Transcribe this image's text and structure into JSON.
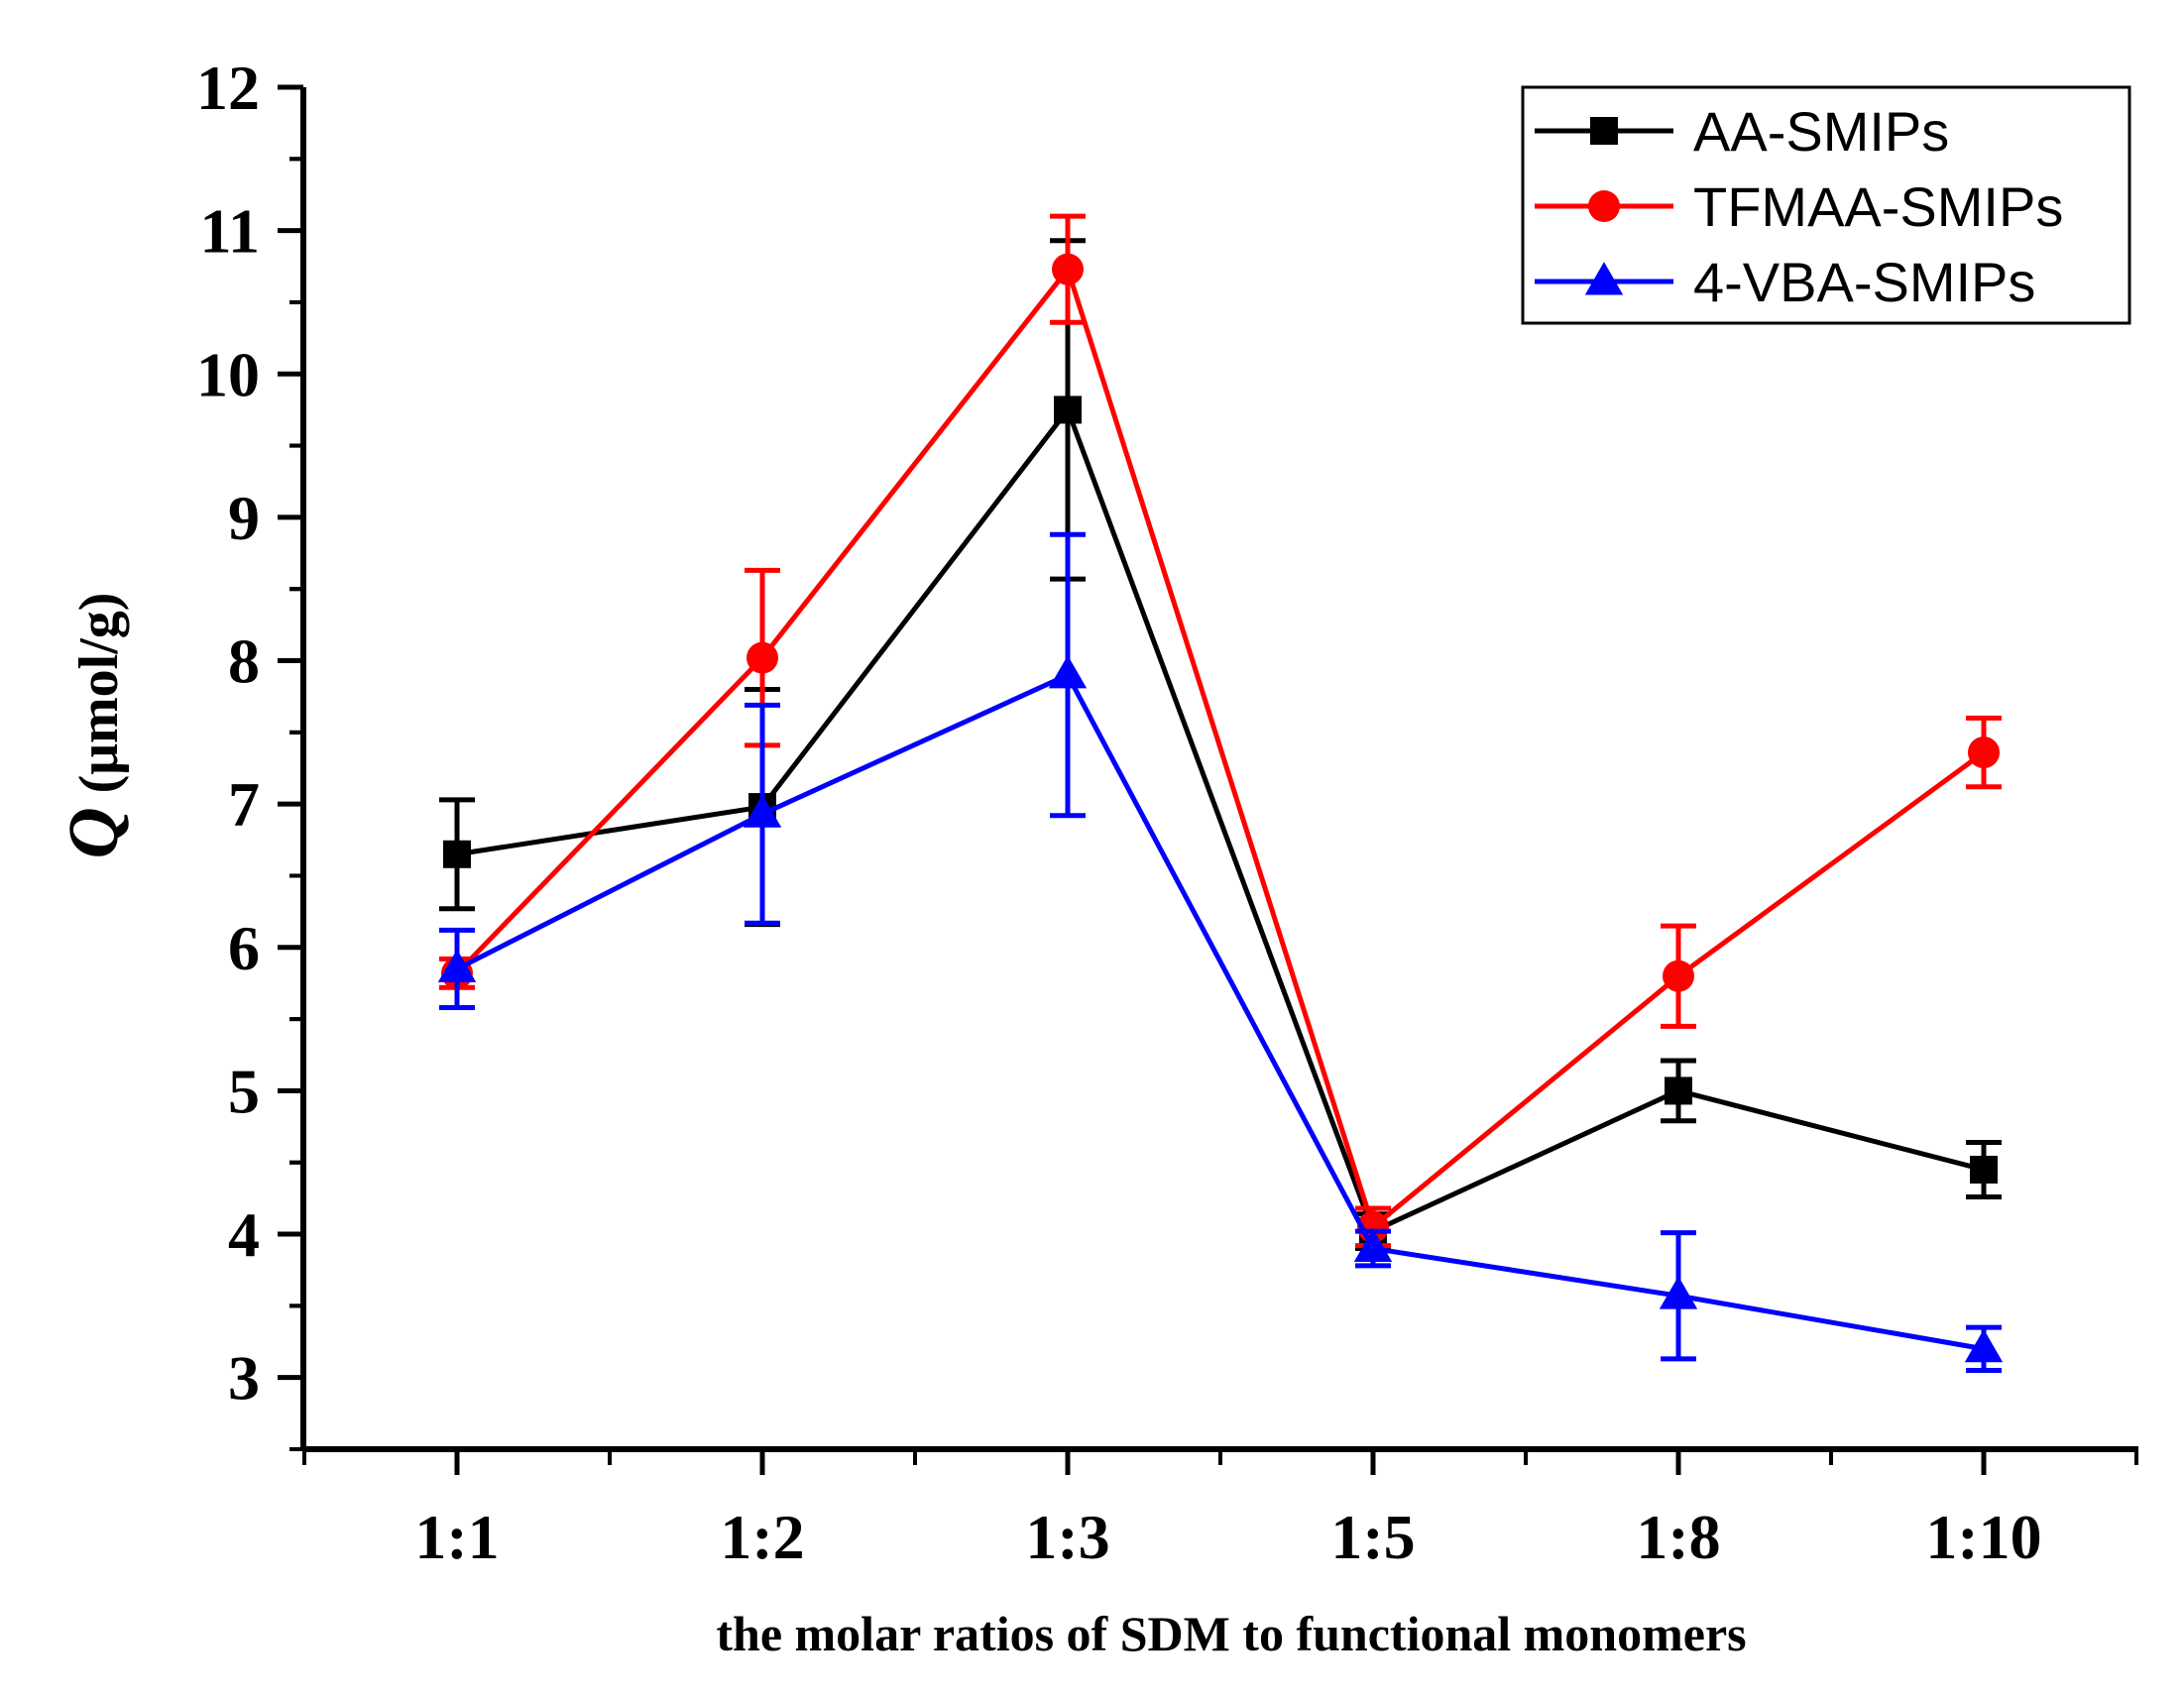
{
  "chart_data": {
    "type": "line",
    "categories": [
      "1:1",
      "1:2",
      "1:3",
      "1:5",
      "1:8",
      "1:10"
    ],
    "xlabel": "the molar ratios of SDM to functional monomers",
    "ylabel_symbol": "Q",
    "ylabel_unit": "(μmol/g)",
    "ylim": [
      2.5,
      12
    ],
    "yticks": [
      3,
      4,
      5,
      6,
      7,
      8,
      9,
      10,
      11,
      12
    ],
    "grid": false,
    "legend_position": "top-right",
    "series": [
      {
        "name": "AA-SMIPs",
        "color": "#000000",
        "marker": "square",
        "values": [
          6.65,
          6.98,
          9.75,
          4.02,
          5.0,
          4.45
        ],
        "errors": [
          0.38,
          0.82,
          1.18,
          0.12,
          0.21,
          0.19
        ]
      },
      {
        "name": "TFMAA-SMIPs",
        "color": "#ff0000",
        "marker": "circle",
        "values": [
          5.82,
          8.02,
          10.73,
          4.05,
          5.8,
          7.36
        ],
        "errors": [
          0.1,
          0.61,
          0.37,
          0.13,
          0.35,
          0.24
        ]
      },
      {
        "name": "4-VBA-SMIPs",
        "color": "#0000ff",
        "marker": "triangle",
        "values": [
          5.85,
          6.93,
          7.9,
          3.9,
          3.57,
          3.2
        ],
        "errors": [
          0.27,
          0.76,
          0.98,
          0.12,
          0.44,
          0.15
        ]
      }
    ]
  }
}
